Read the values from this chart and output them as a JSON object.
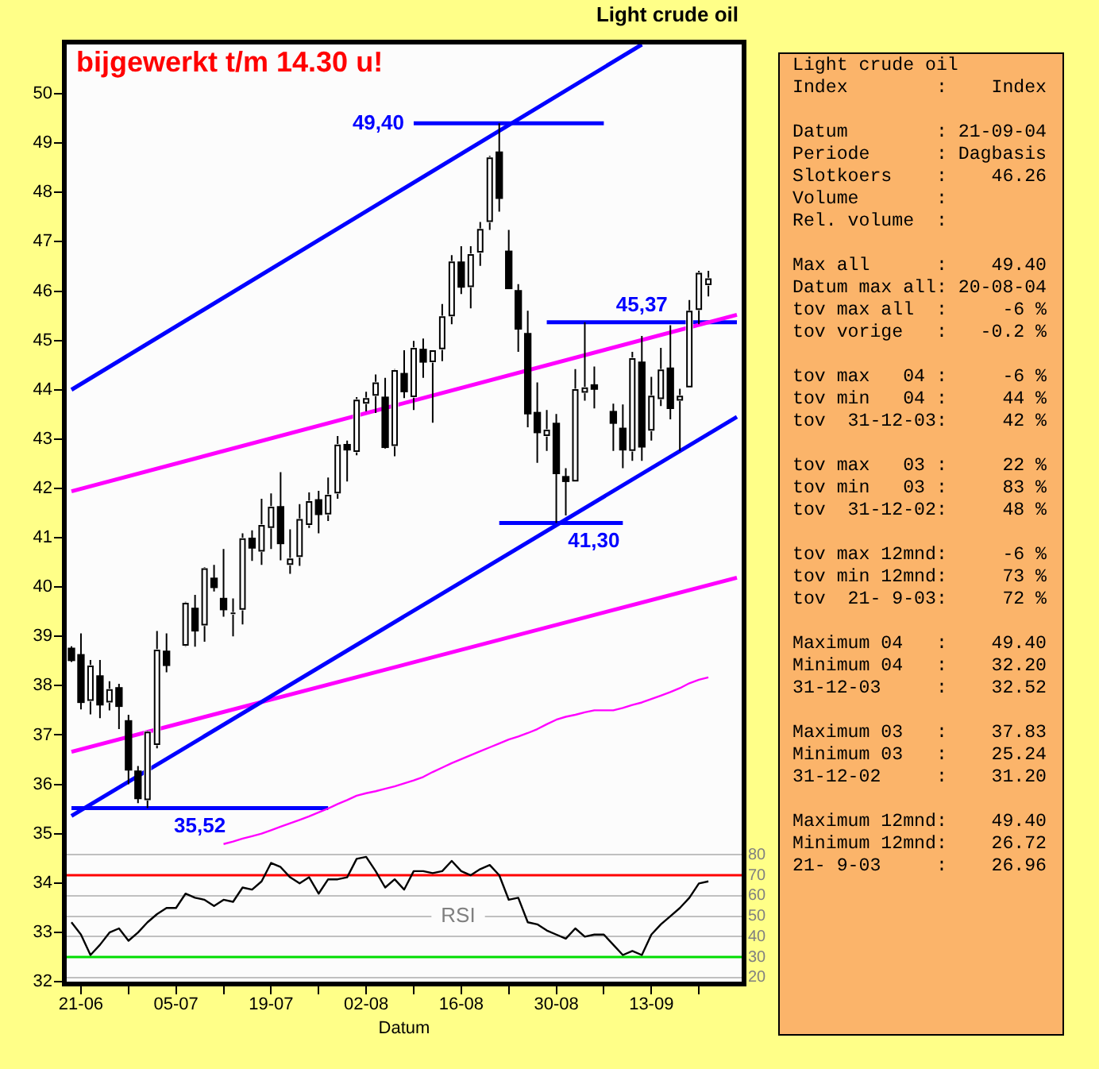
{
  "chart_data": [
    {
      "type": "candlestick",
      "title": "Light crude oil",
      "xlabel": "Datum",
      "y2label": "RSI",
      "annotations": [
        "bijgewerkt t/m 14.30 u!"
      ],
      "categories": [
        null,
        "21-06",
        null,
        null,
        null,
        null,
        null,
        null,
        null,
        null,
        null,
        "05-07",
        null,
        null,
        null,
        null,
        null,
        null,
        null,
        null,
        null,
        "19-07",
        null,
        null,
        null,
        null,
        null,
        null,
        null,
        null,
        null,
        "02-08",
        null,
        null,
        null,
        null,
        null,
        null,
        null,
        null,
        null,
        "16-08",
        null,
        null,
        null,
        null,
        null,
        null,
        null,
        null,
        null,
        "30-08",
        null,
        null,
        null,
        null,
        null,
        null,
        null,
        null,
        null,
        "13-09",
        null,
        null,
        null,
        null,
        null,
        null,
        null,
        null,
        null
      ],
      "ohlc": [
        [
          38.76,
          38.8,
          38.48,
          38.51
        ],
        [
          38.63,
          39.06,
          37.52,
          37.66
        ],
        [
          37.69,
          38.52,
          37.42,
          38.41
        ],
        [
          38.2,
          38.52,
          37.34,
          37.61
        ],
        [
          37.66,
          38.09,
          37.5,
          37.93
        ],
        [
          37.96,
          38.04,
          37.12,
          37.58
        ],
        [
          37.29,
          37.41,
          36.0,
          36.29
        ],
        [
          36.27,
          36.37,
          35.62,
          35.71
        ],
        [
          35.68,
          37.09,
          35.52,
          37.07
        ],
        [
          36.8,
          39.11,
          36.73,
          38.73
        ],
        [
          38.7,
          39.06,
          38.27,
          38.41
        ],
        null,
        [
          38.81,
          39.7,
          38.79,
          39.68
        ],
        [
          39.57,
          39.84,
          38.79,
          39.11
        ],
        [
          39.22,
          40.4,
          38.89,
          40.38
        ],
        [
          40.18,
          40.45,
          39.91,
          39.99
        ],
        [
          39.77,
          40.77,
          39.4,
          39.54
        ],
        [
          39.45,
          39.77,
          39.0,
          39.45
        ],
        [
          39.54,
          41.09,
          39.24,
          40.99
        ],
        [
          40.99,
          41.15,
          40.53,
          40.79
        ],
        [
          40.72,
          41.79,
          40.45,
          41.26
        ],
        [
          41.2,
          41.9,
          40.77,
          41.63
        ],
        [
          41.63,
          42.33,
          40.54,
          40.88
        ],
        [
          40.45,
          41.17,
          40.27,
          40.58
        ],
        [
          40.61,
          41.68,
          40.43,
          41.38
        ],
        [
          41.26,
          41.92,
          41.2,
          41.74
        ],
        [
          41.77,
          41.95,
          41.09,
          41.47
        ],
        [
          41.47,
          42.22,
          41.34,
          41.87
        ],
        [
          41.9,
          43.06,
          41.79,
          42.89
        ],
        [
          42.89,
          42.97,
          42.14,
          42.78
        ],
        [
          42.74,
          43.85,
          42.67,
          43.8
        ],
        [
          43.72,
          43.96,
          43.56,
          43.83
        ],
        [
          43.88,
          44.31,
          43.53,
          44.15
        ],
        [
          43.85,
          44.24,
          42.81,
          42.83
        ],
        [
          42.86,
          44.42,
          42.65,
          44.4
        ],
        [
          44.33,
          44.8,
          43.83,
          43.96
        ],
        [
          43.85,
          44.99,
          43.59,
          44.85
        ],
        [
          44.82,
          45.04,
          44.24,
          44.56
        ],
        [
          44.56,
          44.8,
          43.33,
          44.8
        ],
        [
          44.82,
          45.74,
          44.58,
          45.49
        ],
        [
          45.49,
          46.73,
          45.33,
          46.6
        ],
        [
          46.59,
          46.91,
          45.94,
          46.08
        ],
        [
          46.08,
          46.91,
          45.65,
          46.75
        ],
        [
          46.78,
          47.4,
          46.51,
          47.26
        ],
        [
          47.4,
          48.74,
          47.24,
          48.71
        ],
        [
          48.82,
          49.4,
          47.61,
          47.88
        ],
        [
          46.81,
          47.24,
          46.05,
          46.05
        ],
        [
          46.01,
          46.14,
          44.77,
          45.23
        ],
        [
          45.14,
          45.6,
          43.24,
          43.51
        ],
        [
          43.54,
          44.15,
          42.52,
          43.13
        ],
        [
          43.06,
          43.59,
          42.76,
          43.19
        ],
        [
          43.32,
          43.51,
          41.3,
          42.3
        ],
        [
          42.24,
          42.41,
          41.45,
          42.14
        ],
        [
          42.14,
          44.42,
          42.14,
          44.01
        ],
        [
          43.94,
          45.37,
          43.78,
          44.05
        ],
        [
          44.1,
          44.47,
          43.62,
          44.01
        ],
        null,
        [
          43.56,
          43.72,
          42.76,
          43.32
        ],
        [
          43.22,
          43.7,
          42.41,
          42.78
        ],
        [
          42.76,
          44.77,
          42.56,
          44.64
        ],
        [
          44.56,
          45.09,
          42.56,
          42.84
        ],
        [
          43.17,
          44.26,
          42.97,
          43.88
        ],
        [
          43.81,
          44.85,
          43.67,
          44.41
        ],
        [
          44.44,
          45.31,
          43.4,
          43.62
        ],
        [
          43.78,
          44.02,
          42.76,
          43.88
        ],
        [
          44.05,
          45.82,
          44.05,
          45.6
        ],
        [
          45.62,
          46.41,
          45.33,
          46.37
        ],
        [
          46.12,
          46.41,
          45.89,
          46.26
        ],
        null,
        null,
        null
      ],
      "colors": [
        "#000000",
        "#000000",
        "#ffffff",
        "#000000",
        "#ffffff",
        "#000000",
        "#000000",
        "#000000",
        "#ffffff",
        "#ffffff",
        "#000000",
        null,
        "#ffffff",
        "#000000",
        "#ffffff",
        "#000000",
        "#000000",
        "#ffffff",
        "#ffffff",
        "#000000",
        "#ffffff",
        "#ffffff",
        "#000000",
        "#ffffff",
        "#ffffff",
        "#ffffff",
        "#000000",
        "#ffffff",
        "#ffffff",
        "#000000",
        "#ffffff",
        "#ffffff",
        "#ffffff",
        "#000000",
        "#ffffff",
        "#000000",
        "#ffffff",
        "#000000",
        "#ffffff",
        "#ffffff",
        "#ffffff",
        "#000000",
        "#ffffff",
        "#ffffff",
        "#ffffff",
        "#000000",
        "#000000",
        "#000000",
        "#000000",
        "#000000",
        "#ffffff",
        "#000000",
        "#000000",
        "#ffffff",
        "#ffffff",
        "#000000",
        null,
        "#000000",
        "#000000",
        "#ffffff",
        "#000000",
        "#ffffff",
        "#ffffff",
        "#000000",
        "#ffffff",
        "#ffffff",
        "#ffffff",
        "#ffffff",
        null,
        null,
        null
      ],
      "series": [
        {
          "type": "line",
          "color": "#0000ff",
          "values": [
            44.0,
            null,
            null,
            null,
            null,
            null,
            null,
            null,
            null,
            null,
            null,
            null,
            null,
            null,
            null,
            null,
            null,
            null,
            null,
            null,
            null,
            null,
            null,
            null,
            null,
            null,
            null,
            null,
            null,
            null,
            null,
            null,
            null,
            null,
            null,
            null,
            null,
            null,
            null,
            null,
            null,
            null,
            null,
            null,
            null,
            null,
            null,
            null,
            null,
            null,
            null,
            null,
            null,
            null,
            null,
            null,
            null,
            null,
            null,
            null,
            51.0,
            null,
            null,
            null,
            null,
            null,
            null,
            null,
            null,
            null,
            null
          ]
        },
        {
          "type": "line",
          "color": "#0000ff",
          "values": [
            35.36,
            null,
            null,
            null,
            null,
            null,
            null,
            null,
            null,
            null,
            null,
            null,
            null,
            null,
            null,
            null,
            null,
            null,
            null,
            null,
            null,
            null,
            null,
            null,
            null,
            null,
            null,
            null,
            null,
            null,
            null,
            null,
            null,
            null,
            null,
            null,
            null,
            null,
            null,
            null,
            null,
            null,
            null,
            null,
            null,
            null,
            null,
            null,
            null,
            null,
            null,
            null,
            null,
            null,
            null,
            null,
            null,
            null,
            null,
            null,
            null,
            null,
            null,
            null,
            null,
            null,
            null,
            null,
            null,
            null,
            43.45
          ]
        },
        {
          "type": "line",
          "color": "#ff00ff",
          "values": [
            41.94,
            null,
            null,
            null,
            null,
            null,
            null,
            null,
            null,
            null,
            null,
            null,
            null,
            null,
            null,
            null,
            null,
            null,
            null,
            null,
            null,
            null,
            null,
            null,
            null,
            null,
            null,
            null,
            null,
            null,
            null,
            null,
            null,
            null,
            null,
            null,
            null,
            null,
            null,
            null,
            null,
            null,
            null,
            null,
            null,
            null,
            null,
            null,
            null,
            null,
            null,
            null,
            null,
            null,
            null,
            null,
            null,
            null,
            null,
            null,
            null,
            null,
            null,
            null,
            null,
            null,
            null,
            null,
            null,
            null,
            45.52
          ]
        },
        {
          "type": "line",
          "color": "#ff00ff",
          "values": [
            36.66,
            null,
            null,
            null,
            null,
            null,
            null,
            null,
            null,
            null,
            null,
            null,
            null,
            null,
            null,
            null,
            null,
            null,
            null,
            null,
            null,
            null,
            null,
            null,
            null,
            null,
            null,
            null,
            null,
            null,
            null,
            null,
            null,
            null,
            null,
            null,
            null,
            null,
            null,
            null,
            null,
            null,
            null,
            null,
            null,
            null,
            null,
            null,
            null,
            null,
            null,
            null,
            null,
            null,
            null,
            null,
            null,
            null,
            null,
            null,
            null,
            null,
            null,
            null,
            null,
            null,
            null,
            null,
            null,
            null,
            40.19
          ]
        },
        {
          "type": "line",
          "color": "#ff00ff",
          "values": [
            null,
            null,
            null,
            null,
            null,
            null,
            null,
            null,
            null,
            null,
            null,
            null,
            null,
            null,
            null,
            null,
            34.79,
            34.84,
            34.9,
            34.95,
            35.0,
            35.07,
            35.14,
            35.21,
            35.28,
            35.35,
            35.43,
            35.51,
            35.6,
            35.68,
            35.77,
            35.82,
            35.86,
            35.91,
            35.96,
            36.02,
            36.08,
            36.15,
            36.25,
            36.34,
            36.43,
            36.51,
            36.59,
            36.67,
            36.75,
            36.83,
            36.91,
            36.97,
            37.04,
            37.12,
            37.22,
            37.31,
            37.37,
            37.41,
            37.46,
            37.5,
            37.5,
            37.5,
            37.55,
            37.61,
            37.66,
            37.73,
            37.8,
            37.87,
            37.95,
            38.05,
            38.12,
            38.17,
            null,
            null,
            null
          ]
        },
        {
          "type": "line",
          "name": "35,52",
          "color": "#0000ff",
          "values": [
            35.52,
            null,
            null,
            null,
            null,
            null,
            null,
            null,
            null,
            null,
            null,
            null,
            null,
            null,
            null,
            null,
            null,
            null,
            null,
            null,
            null,
            null,
            null,
            null,
            null,
            null,
            null,
            35.52,
            null,
            null,
            null,
            null,
            null,
            null,
            null,
            null,
            null,
            null,
            null,
            null,
            null,
            null,
            null,
            null,
            null,
            null,
            null,
            null,
            null,
            null,
            null,
            null,
            null,
            null,
            null,
            null,
            null,
            null,
            null,
            null,
            null,
            null,
            null,
            null,
            null,
            null,
            null,
            null,
            null,
            null,
            null
          ]
        },
        {
          "type": "line",
          "name": "49,40",
          "color": "#0000ff",
          "values": [
            null,
            null,
            null,
            null,
            null,
            null,
            null,
            null,
            null,
            null,
            null,
            null,
            null,
            null,
            null,
            null,
            null,
            null,
            null,
            null,
            null,
            null,
            null,
            null,
            null,
            null,
            null,
            null,
            null,
            null,
            null,
            null,
            null,
            null,
            null,
            null,
            49.4,
            null,
            null,
            null,
            null,
            null,
            null,
            null,
            null,
            null,
            null,
            null,
            null,
            null,
            null,
            null,
            null,
            null,
            null,
            null,
            49.4,
            null,
            null,
            null,
            null,
            null,
            null,
            null,
            null,
            null,
            null,
            null,
            null,
            null,
            null
          ]
        },
        {
          "type": "line",
          "name": "41,30",
          "color": "#0000ff",
          "values": [
            null,
            null,
            null,
            null,
            null,
            null,
            null,
            null,
            null,
            null,
            null,
            null,
            null,
            null,
            null,
            null,
            null,
            null,
            null,
            null,
            null,
            null,
            null,
            null,
            null,
            null,
            null,
            null,
            null,
            null,
            null,
            null,
            null,
            null,
            null,
            null,
            null,
            null,
            null,
            null,
            null,
            null,
            null,
            null,
            null,
            41.3,
            null,
            null,
            null,
            null,
            null,
            null,
            null,
            null,
            null,
            null,
            null,
            null,
            41.3,
            null,
            null,
            null,
            null,
            null,
            null,
            null,
            null,
            null,
            null,
            null,
            null
          ]
        },
        {
          "type": "line",
          "name": "45,37",
          "color": "#0000ff",
          "values": [
            null,
            null,
            null,
            null,
            null,
            null,
            null,
            null,
            null,
            null,
            null,
            null,
            null,
            null,
            null,
            null,
            null,
            null,
            null,
            null,
            null,
            null,
            null,
            null,
            null,
            null,
            null,
            null,
            null,
            null,
            null,
            null,
            null,
            null,
            null,
            null,
            null,
            null,
            null,
            null,
            null,
            null,
            null,
            null,
            null,
            null,
            null,
            null,
            null,
            null,
            45.37,
            null,
            null,
            null,
            null,
            null,
            null,
            null,
            null,
            null,
            null,
            null,
            null,
            null,
            null,
            null,
            null,
            null,
            null,
            null,
            45.37
          ]
        },
        {
          "type": "line",
          "axis": "y2",
          "color": "#000000",
          "values": [
            47,
            41,
            31,
            36,
            42,
            44,
            38,
            42,
            47,
            51,
            54,
            54,
            61,
            59,
            58,
            55,
            58,
            57,
            64,
            63,
            67,
            76,
            74,
            69,
            66,
            69,
            61,
            68,
            68,
            69,
            78,
            79,
            72,
            64,
            68,
            63,
            72,
            72,
            71,
            72,
            77,
            72,
            70,
            73,
            75,
            70,
            58,
            59,
            47,
            46,
            43,
            41,
            39,
            44,
            40,
            41,
            41,
            36,
            31,
            33,
            31,
            41,
            46,
            50,
            54,
            59,
            66,
            67,
            null,
            null,
            null
          ]
        }
      ],
      "ylim": [
        32,
        51
      ],
      "yticks": [
        32,
        33,
        34,
        35,
        36,
        37,
        38,
        39,
        40,
        41,
        42,
        43,
        44,
        45,
        46,
        47,
        48,
        49,
        50
      ],
      "y2lim": [
        18,
        476
      ],
      "y2ticks": [
        20,
        30,
        40,
        50,
        60,
        70,
        80
      ],
      "grid": "y2",
      "ref_lines": [
        {
          "axis": "y2",
          "value": 70,
          "color": "#ff0000"
        },
        {
          "axis": "y2",
          "value": 30,
          "color": "#00dd00"
        }
      ]
    },
    {
      "type": "other",
      "title": "Light crude oil",
      "annotations": [
        "Index        :    Index",
        "Datum        : 21-09-04\nPeriode      : Dagbasis\nSlotkoers    :    46.26\nVolume       :\nRel. volume  :",
        "Max all      :    49.40\nDatum max all: 20-08-04\ntov max all  :     -6 %\ntov vorige   :   -0.2 %",
        "tov max   04 :     -6 %\ntov min   04 :     44 %\ntov  31-12-03:     42 %",
        "tov max   03 :     22 %\ntov min   03 :     83 %\ntov  31-12-02:     48 %",
        "tov max 12mnd:     -6 %\ntov min 12mnd:     73 %\ntov  21- 9-03:     72 %",
        "Maximum 04   :    49.40\nMinimum 04   :    32.20\n31-12-03     :    32.52",
        "Maximum 03   :    37.83\nMinimum 03   :    25.24\n31-12-02     :    31.20",
        "Maximum 12mnd:    49.40\nMinimum 12mnd:    26.72\n21- 9-03     :    26.96"
      ]
    }
  ]
}
